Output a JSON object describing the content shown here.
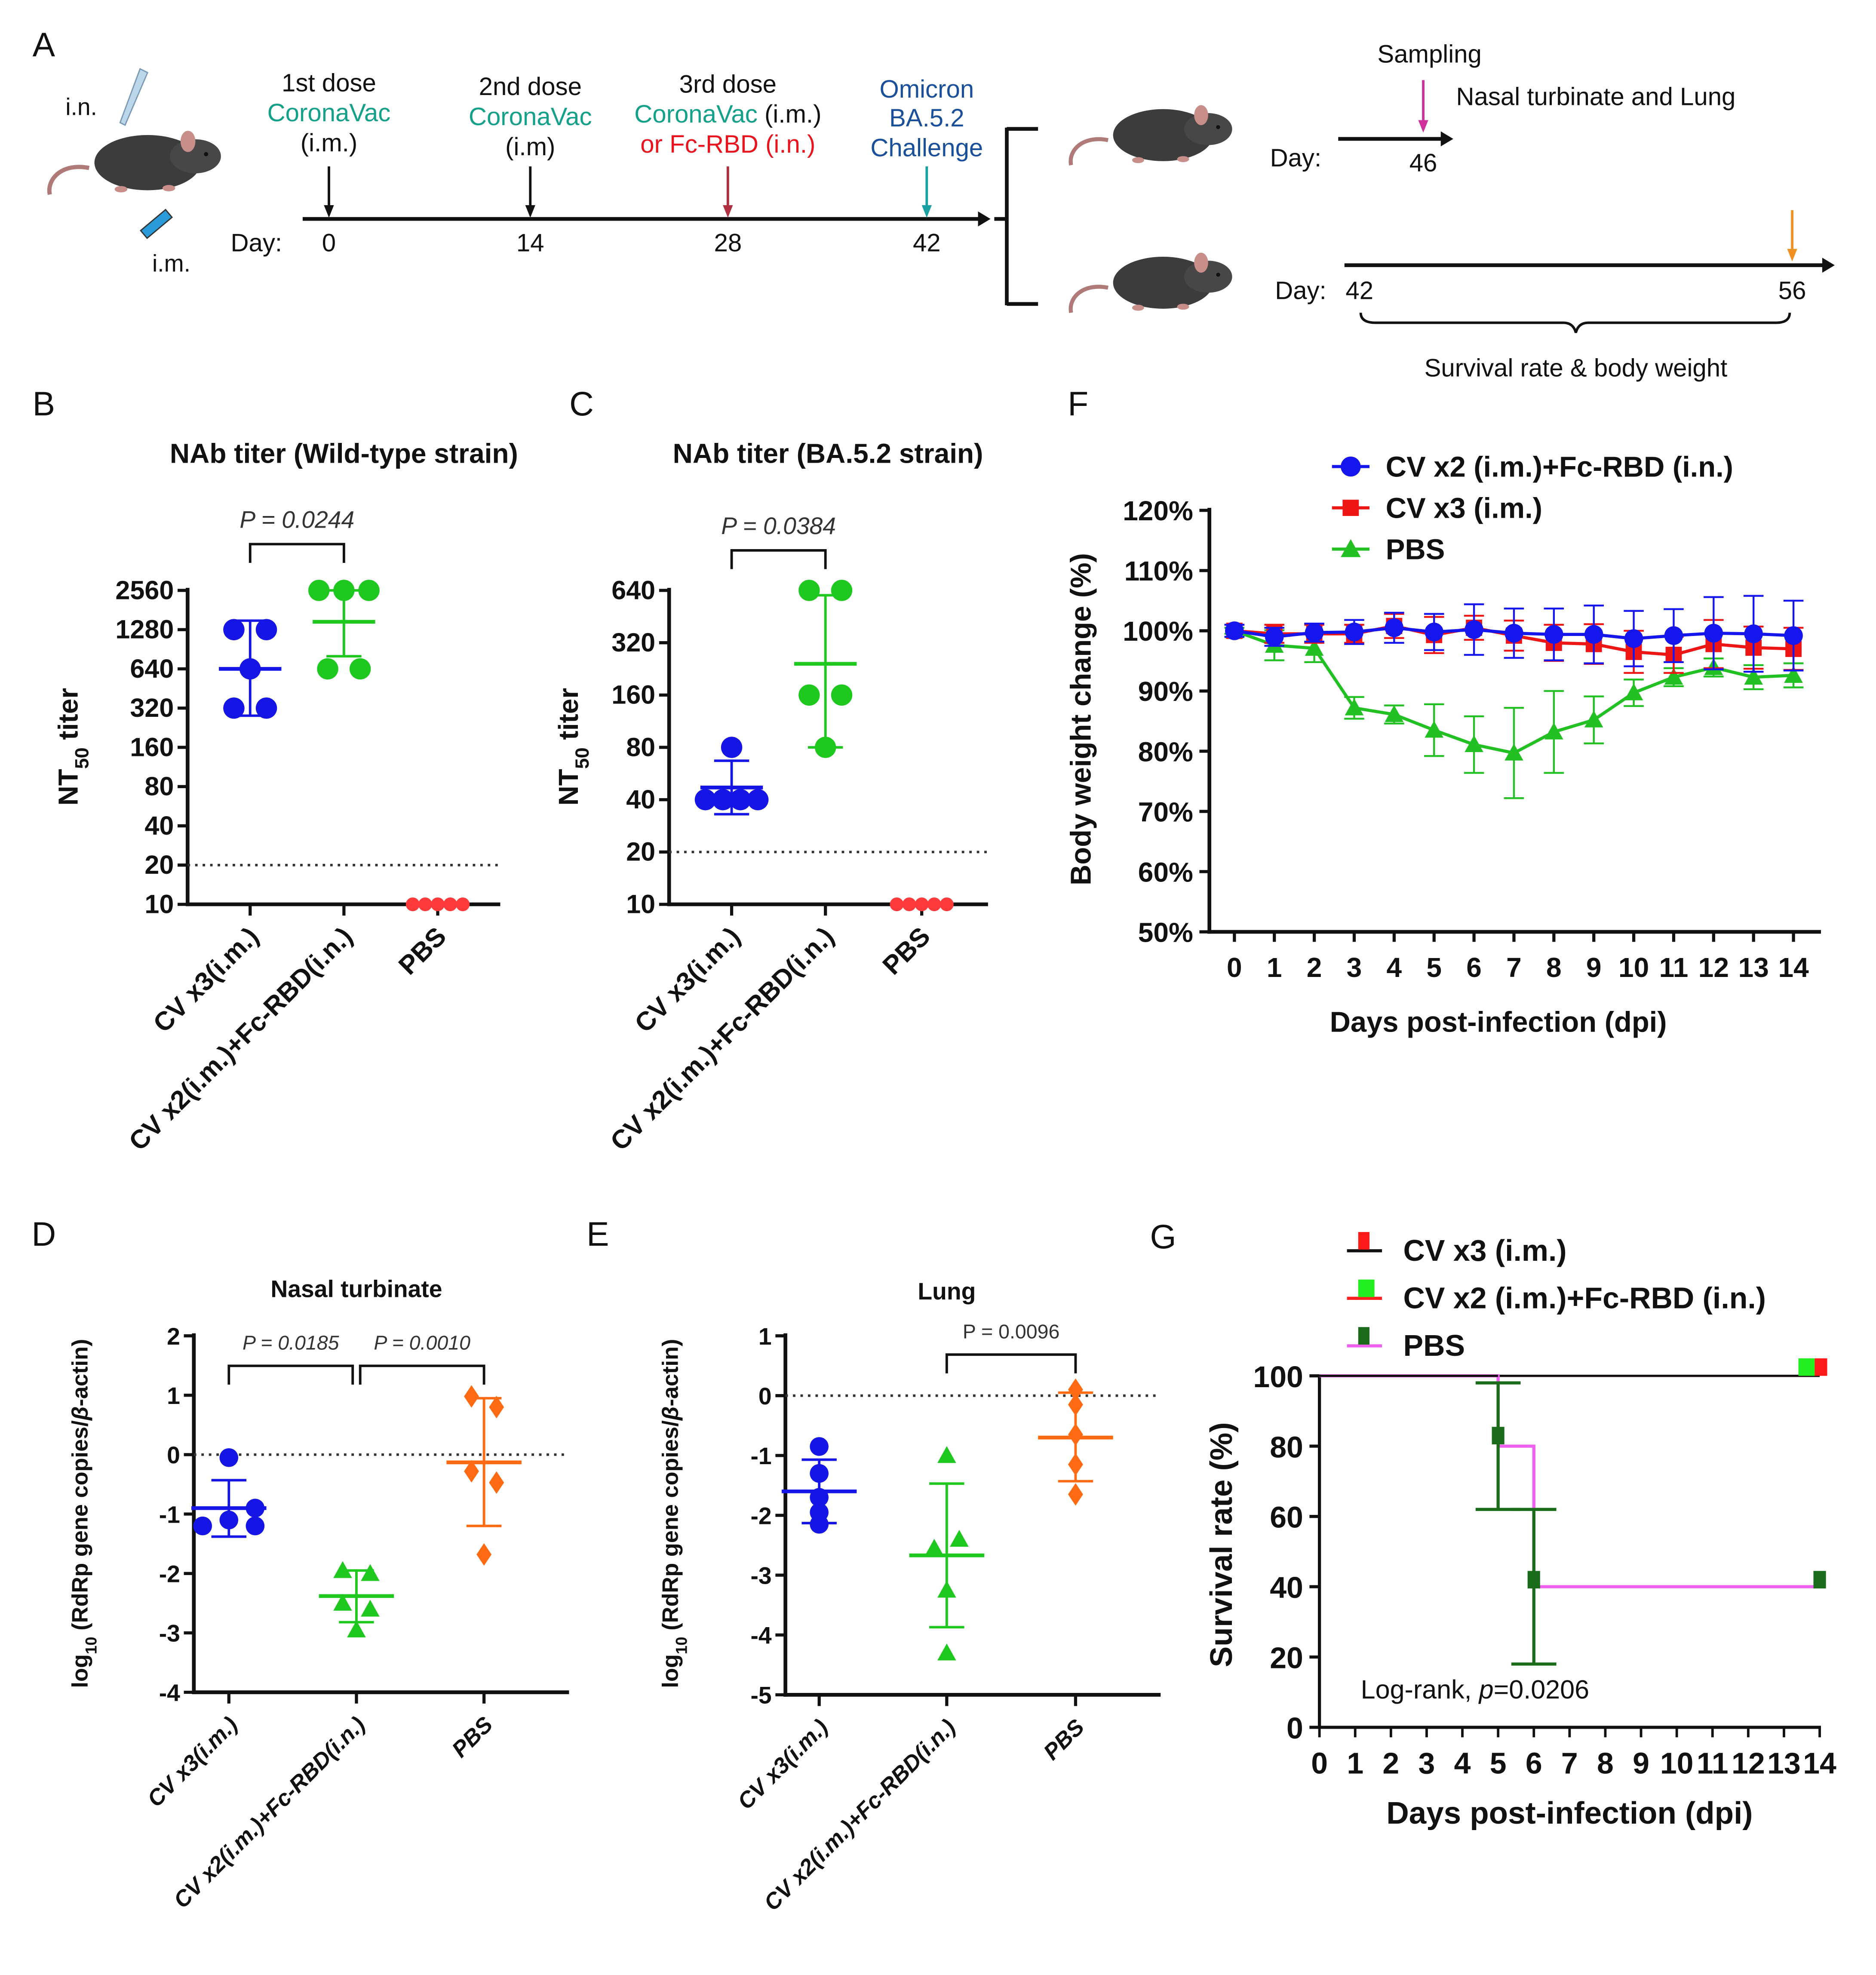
{
  "panel_a": {
    "label": "A",
    "route_in": "i.n.",
    "route_im": "i.m.",
    "day_label": "Day:",
    "colors": {
      "teal": "#15a08a",
      "red": "#e8141e",
      "navy": "#1a4f9a",
      "black": "#111111"
    },
    "doses": [
      {
        "lines": [
          [
            {
              "text": "1st dose",
              "color": "#111111"
            }
          ],
          [
            {
              "text": "CoronaVac",
              "color": "#15a08a"
            }
          ],
          [
            {
              "text": "(i.m.)",
              "color": "#111111"
            }
          ]
        ],
        "day": "0",
        "arrow_color": "#111111"
      },
      {
        "lines": [
          [
            {
              "text": "2nd dose",
              "color": "#111111"
            }
          ],
          [
            {
              "text": "CoronaVac",
              "color": "#15a08a"
            }
          ],
          [
            {
              "text": "(i.m)",
              "color": "#111111"
            }
          ]
        ],
        "day": "14",
        "arrow_color": "#111111"
      },
      {
        "lines": [
          [
            {
              "text": "3rd dose",
              "color": "#111111"
            }
          ],
          [
            {
              "text": "CoronaVac",
              "color": "#15a08a"
            },
            {
              "text": " (i.m.)",
              "color": "#111111"
            }
          ],
          [
            {
              "text": "or Fc-RBD (i.n.)",
              "color": "#e8141e"
            }
          ]
        ],
        "day": "28",
        "arrow_color": "#b03040"
      },
      {
        "lines": [
          [
            {
              "text": "Omicron",
              "color": "#1a4f9a"
            }
          ],
          [
            {
              "text": "BA.5.2",
              "color": "#1a4f9a"
            }
          ],
          [
            {
              "text": "Challenge",
              "color": "#1a4f9a"
            }
          ]
        ],
        "day": "42",
        "arrow_color": "#1aa0a0"
      }
    ],
    "branch_top": {
      "sampling": "Sampling",
      "site": "Nasal turbinate and Lung",
      "day_label": "Day:",
      "day": "46",
      "arrow_color": "#d0309a"
    },
    "branch_bottom": {
      "day_label": "Day:",
      "start": "42",
      "end": "56",
      "caption": "Survival rate &  body weight",
      "arrow_color": "#f09020"
    }
  },
  "chart_data": [
    {
      "panel": "B",
      "type": "scatter",
      "title": "NAb titer (Wild-type strain)",
      "ylabel": [
        {
          "text": "NT"
        },
        {
          "text": "50",
          "sub": true
        },
        {
          "text": " titer"
        }
      ],
      "yscale": "log2",
      "ylim": [
        10,
        2560
      ],
      "y_ticks": [
        10,
        20,
        40,
        80,
        160,
        320,
        640,
        1280,
        2560
      ],
      "threshold": 20,
      "groups": [
        {
          "name": "CV x3(i.m.)",
          "values": [
            1280,
            1280,
            640,
            320,
            320
          ],
          "mean": 640,
          "sd_upper": 1500,
          "sd_lower": 280,
          "color": "#1515e6",
          "marker": "circle"
        },
        {
          "name": "CV x2(i.m.)+Fc-RBD(i.n.)",
          "values": [
            2560,
            2560,
            2560,
            640,
            640
          ],
          "mean": 1470,
          "sd_upper": 2560,
          "sd_lower": 800,
          "color": "#1ec81e",
          "marker": "circle"
        },
        {
          "name": "PBS",
          "values": [
            10,
            10,
            10,
            10,
            10
          ],
          "color": "#ff3a3a",
          "marker": "circle-small"
        }
      ],
      "comparisons": [
        {
          "between": [
            0,
            1
          ],
          "label": "P = 0.0244",
          "italic": true
        }
      ]
    },
    {
      "panel": "C",
      "type": "scatter",
      "title": "NAb titer (BA.5.2 strain)",
      "ylabel": [
        {
          "text": "NT"
        },
        {
          "text": "50",
          "sub": true
        },
        {
          "text": " titer"
        }
      ],
      "yscale": "log2",
      "ylim": [
        10,
        640
      ],
      "y_ticks": [
        10,
        20,
        40,
        80,
        160,
        320,
        640
      ],
      "threshold": 20,
      "groups": [
        {
          "name": "CV x3(i.m.)",
          "values": [
            80,
            40,
            40,
            40,
            40
          ],
          "mean": 47,
          "sd_upper": 67,
          "sd_lower": 33,
          "color": "#1515e6",
          "marker": "circle"
        },
        {
          "name": "CV x2(i.m.)+Fc-RBD(i.n.)",
          "values": [
            640,
            640,
            160,
            160,
            80
          ],
          "mean": 242,
          "sd_upper": 600,
          "sd_lower": 80,
          "color": "#1ec81e",
          "marker": "circle"
        },
        {
          "name": "PBS",
          "values": [
            10,
            10,
            10,
            10,
            10
          ],
          "color": "#ff3a3a",
          "marker": "circle-small"
        }
      ],
      "comparisons": [
        {
          "between": [
            0,
            1
          ],
          "label": "P = 0.0384",
          "italic": true
        }
      ]
    },
    {
      "panel": "D",
      "type": "scatter",
      "title": "Nasal turbinate",
      "ylabel": [
        {
          "text": "log"
        },
        {
          "text": "10",
          "sub": true
        },
        {
          "text": " (RdRp gene copies/"
        },
        {
          "text": "β",
          "italic": true
        },
        {
          "text": "-actin)"
        }
      ],
      "yscale": "linear",
      "ylim": [
        -4,
        2
      ],
      "y_ticks": [
        -4,
        -3,
        -2,
        -1,
        0,
        1,
        2
      ],
      "threshold": 0,
      "groups": [
        {
          "name": "CV x3(i.m.)",
          "values": [
            -0.05,
            -0.9,
            -1.1,
            -1.2,
            -1.2
          ],
          "mean": -0.9,
          "sd_upper": -0.43,
          "sd_lower": -1.38,
          "color": "#1515e6",
          "marker": "circle"
        },
        {
          "name": "CV x2(i.m.)+Fc-RBD(i.n.)",
          "values": [
            -1.95,
            -2.0,
            -2.5,
            -2.6,
            -2.95
          ],
          "mean": -2.38,
          "sd_upper": -1.95,
          "sd_lower": -2.82,
          "color": "#1ec81e",
          "marker": "triangle"
        },
        {
          "name": "PBS",
          "values": [
            0.98,
            0.8,
            -0.28,
            -0.47,
            -1.68
          ],
          "mean": -0.13,
          "sd_upper": 0.95,
          "sd_lower": -1.2,
          "color": "#ff6a12",
          "marker": "diamond"
        }
      ],
      "comparisons": [
        {
          "between": [
            0,
            1
          ],
          "label": "P = 0.0185",
          "italic": true
        },
        {
          "between": [
            1,
            2
          ],
          "label": "P = 0.0010",
          "italic": true
        }
      ]
    },
    {
      "panel": "E",
      "type": "scatter",
      "title": "Lung",
      "ylabel": [
        {
          "text": "log"
        },
        {
          "text": "10",
          "sub": true
        },
        {
          "text": " (RdRp gene copies/"
        },
        {
          "text": "β",
          "italic": true
        },
        {
          "text": "-actin)"
        }
      ],
      "yscale": "linear",
      "ylim": [
        -5,
        1
      ],
      "y_ticks": [
        -5,
        -4,
        -3,
        -2,
        -1,
        0,
        1
      ],
      "threshold": 0,
      "groups": [
        {
          "name": "CV x3(i.m.)",
          "values": [
            -0.85,
            -1.3,
            -1.7,
            -1.95,
            -2.15
          ],
          "mean": -1.6,
          "sd_upper": -1.07,
          "sd_lower": -2.13,
          "color": "#1515e6",
          "marker": "circle"
        },
        {
          "name": "CV x2(i.m.)+Fc-RBD(i.n.)",
          "values": [
            -1.0,
            -2.4,
            -2.55,
            -3.25,
            -4.3
          ],
          "mean": -2.67,
          "sd_upper": -1.47,
          "sd_lower": -3.87,
          "color": "#1ec81e",
          "marker": "triangle"
        },
        {
          "name": "PBS",
          "values": [
            0.1,
            -0.15,
            -0.65,
            -1.15,
            -1.65
          ],
          "mean": -0.7,
          "sd_upper": 0.05,
          "sd_lower": -1.43,
          "color": "#ff6a12",
          "marker": "diamond"
        }
      ],
      "comparisons": [
        {
          "between": [
            1,
            2
          ],
          "label": "P = 0.0096",
          "italic": false
        }
      ]
    },
    {
      "panel": "F",
      "type": "line",
      "xlabel": "Days post-infection (dpi)",
      "ylabel": "Body weight change (%)",
      "x": [
        0,
        1,
        2,
        3,
        4,
        5,
        6,
        7,
        8,
        9,
        10,
        11,
        12,
        13,
        14
      ],
      "ylim": [
        50,
        120
      ],
      "y_ticks": [
        50,
        60,
        70,
        80,
        90,
        100,
        110,
        120
      ],
      "y_tick_labels": [
        "50%",
        "60%",
        "70%",
        "80%",
        "90%",
        "100%",
        "110%",
        "120%"
      ],
      "legend_position": "top",
      "series": [
        {
          "name": "CV x2 (i.m.)+Fc-RBD (i.n.)",
          "color": "#1515ee",
          "marker": "circle",
          "values": [
            100,
            99,
            99.7,
            99.8,
            100.5,
            99.8,
            100.2,
            99.6,
            99.4,
            99.4,
            98.7,
            99.2,
            99.6,
            99.5,
            99.2
          ],
          "sd": [
            1,
            1.5,
            1.5,
            2,
            2.5,
            3,
            4.2,
            4.1,
            4.3,
            4.8,
            4.6,
            4.4,
            6,
            6.3,
            5.8
          ]
        },
        {
          "name": "CV x3 (i.m.)",
          "color": "#ee1515",
          "marker": "square",
          "values": [
            100,
            99.5,
            99.5,
            99.5,
            100.8,
            99.3,
            100.5,
            99.2,
            98,
            97.8,
            96.5,
            96,
            97.8,
            97.2,
            97
          ],
          "sd": [
            1,
            1.5,
            1.5,
            1.5,
            2,
            3,
            2,
            2.5,
            3,
            3.3,
            3.5,
            3,
            4,
            3.5,
            3.5
          ]
        },
        {
          "name": "PBS",
          "color": "#22c022",
          "marker": "triangle",
          "values": [
            100,
            97.6,
            97.1,
            87.2,
            86.1,
            83.5,
            81.1,
            79.7,
            83.2,
            85.2,
            89.7,
            92.3,
            93.9,
            92.3,
            92.6
          ],
          "sd": [
            0.5,
            2.5,
            2.3,
            1.8,
            1.5,
            4.3,
            4.7,
            7.5,
            6.8,
            3.9,
            2.2,
            1.5,
            1.5,
            2,
            2
          ]
        }
      ]
    },
    {
      "panel": "G",
      "type": "line",
      "subtype": "survival",
      "xlabel": "Days post-infection (dpi)",
      "ylabel": "Survival rate (%)",
      "x_ticks": [
        0,
        1,
        2,
        3,
        4,
        5,
        6,
        7,
        8,
        9,
        10,
        11,
        12,
        13,
        14
      ],
      "ylim": [
        0,
        100
      ],
      "y_ticks": [
        0,
        20,
        40,
        60,
        80,
        100
      ],
      "legend_position": "top",
      "annotation": [
        {
          "text": "Log-rank, "
        },
        {
          "text": "p",
          "italic": true
        },
        {
          "text": "=0.0206"
        }
      ],
      "series": [
        {
          "name": "CV x3 (i.m.)",
          "line_color": "#111111",
          "marker_color": "#ff1a1a",
          "steps": [
            [
              0,
              100
            ],
            [
              14,
              100
            ]
          ]
        },
        {
          "name": "CV x2 (i.m.)+Fc-RBD (i.n.)",
          "line_color": "#ff2020",
          "marker_color": "#22ee22",
          "steps": [
            [
              0,
              100
            ],
            [
              14,
              100
            ]
          ]
        },
        {
          "name": "PBS",
          "line_color": "#f060f0",
          "marker_color": "#1a6b1a",
          "steps": [
            [
              0,
              100
            ],
            [
              5,
              100
            ],
            [
              5,
              80
            ],
            [
              6,
              80
            ],
            [
              6,
              40
            ],
            [
              14,
              40
            ]
          ],
          "error_bars": [
            {
              "day": 5,
              "mean": 83,
              "lower": 62,
              "upper": 98
            },
            {
              "day": 6,
              "mean": 42,
              "lower": 18,
              "upper": 62
            }
          ],
          "end_marker": 42
        }
      ]
    }
  ]
}
